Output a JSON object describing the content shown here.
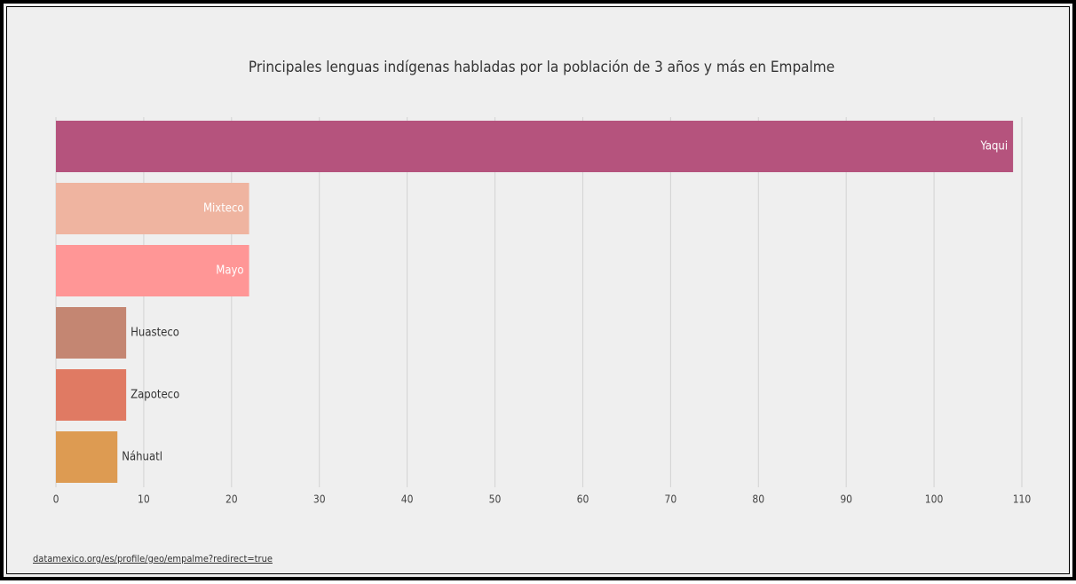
{
  "chart_data": {
    "type": "hbar",
    "title": "Principales lenguas indígenas habladas por la población de 3 años y más en Empalme",
    "categories": [
      "Yaqui",
      "Mixteco",
      "Mayo",
      "Huasteco",
      "Zapoteco",
      "Náhuatl"
    ],
    "values": [
      109,
      22,
      22,
      8,
      8,
      7
    ],
    "colors": [
      "#b5537d",
      "#efb4a0",
      "#ff9696",
      "#c48672",
      "#e07a63",
      "#dd9b52"
    ],
    "xlim": [
      0,
      110
    ],
    "xticks": [
      0,
      10,
      20,
      30,
      40,
      50,
      60,
      70,
      80,
      90,
      100,
      110
    ],
    "grid": true,
    "source": "datamexico.org/es/profile/geo/empalme?redirect=true"
  }
}
